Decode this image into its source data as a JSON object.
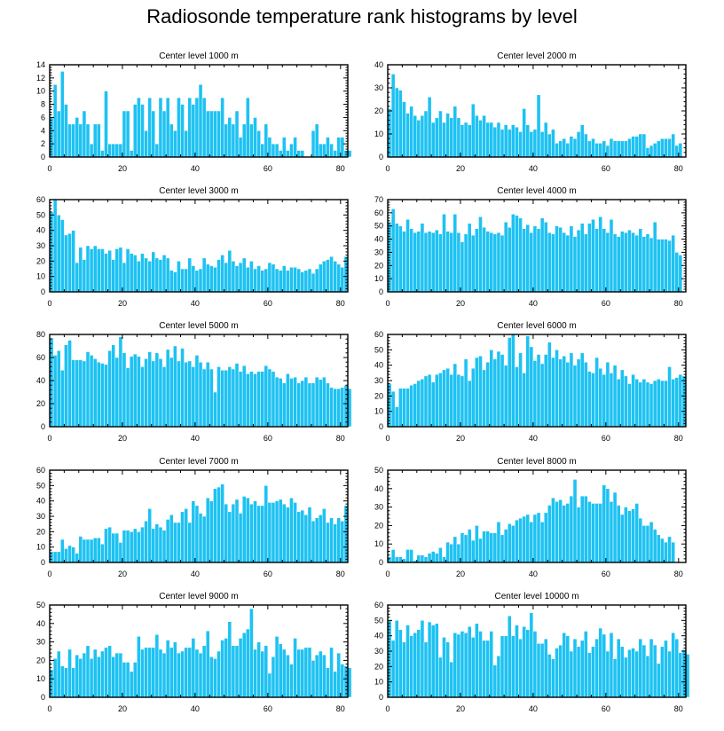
{
  "title": "Radiosonde temperature rank histograms by level",
  "colors": {
    "bar": "#1ec2f2",
    "bar_edge": "#ffffff",
    "axis": "#000000"
  },
  "chart_data": [
    {
      "type": "bar",
      "title": "Center level 1000 m",
      "xlim": [
        0,
        82
      ],
      "ylim": [
        0,
        14
      ],
      "xticks": [
        "0",
        "20",
        "40",
        "60",
        "80"
      ],
      "yticks": [
        "0",
        "2",
        "4",
        "6",
        "8",
        "10",
        "12",
        "14"
      ],
      "values": [
        6,
        11,
        7,
        13,
        8,
        5,
        5,
        6,
        5,
        7,
        5,
        2,
        5,
        5,
        1,
        10,
        2,
        2,
        2,
        2,
        7,
        7,
        1,
        8,
        9,
        8,
        4,
        9,
        7,
        2,
        9,
        7,
        9,
        5,
        4,
        9,
        8,
        4,
        9,
        8,
        9,
        11,
        9,
        7,
        7,
        7,
        7,
        9,
        5,
        6,
        5,
        7,
        3,
        5,
        9,
        5,
        6,
        4,
        2,
        5,
        3,
        2,
        2,
        1,
        3,
        1,
        2,
        3,
        1,
        1,
        0,
        0,
        4,
        5,
        2,
        2,
        3,
        2,
        1,
        3,
        3,
        1,
        1
      ]
    },
    {
      "type": "bar",
      "title": "Center level 2000 m",
      "xlim": [
        0,
        82
      ],
      "ylim": [
        0,
        40
      ],
      "xticks": [
        "0",
        "20",
        "40",
        "60",
        "80"
      ],
      "yticks": [
        "0",
        "10",
        "20",
        "30",
        "40"
      ],
      "values": [
        21,
        36,
        30,
        29,
        24,
        19,
        22,
        18,
        16,
        18,
        20,
        26,
        15,
        17,
        20,
        15,
        19,
        17,
        22,
        17,
        14,
        15,
        14,
        23,
        18,
        16,
        18,
        15,
        15,
        13,
        15,
        12,
        14,
        12,
        14,
        13,
        11,
        21,
        14,
        11,
        12,
        27,
        11,
        15,
        10,
        12,
        6,
        7,
        8,
        6,
        9,
        8,
        11,
        14,
        10,
        7,
        8,
        6,
        6,
        7,
        5,
        8,
        7,
        7,
        7,
        7,
        8,
        9,
        9,
        10,
        10,
        4,
        5,
        6,
        7,
        8,
        8,
        8,
        10,
        5,
        6
      ]
    },
    {
      "type": "bar",
      "title": "Center level 3000 m",
      "xlim": [
        0,
        82
      ],
      "ylim": [
        0,
        60
      ],
      "xticks": [
        "0",
        "20",
        "40",
        "60",
        "80"
      ],
      "yticks": [
        "0",
        "10",
        "20",
        "30",
        "40",
        "50",
        "60"
      ],
      "values": [
        52,
        60,
        50,
        47,
        37,
        38,
        40,
        19,
        29,
        21,
        30,
        28,
        30,
        28,
        28,
        25,
        27,
        21,
        28,
        29,
        19,
        28,
        25,
        24,
        20,
        25,
        22,
        20,
        26,
        22,
        21,
        24,
        22,
        14,
        13,
        20,
        15,
        15,
        22,
        17,
        14,
        15,
        22,
        18,
        17,
        16,
        21,
        24,
        19,
        27,
        20,
        17,
        19,
        22,
        16,
        20,
        15,
        17,
        14,
        15,
        19,
        18,
        15,
        14,
        17,
        14,
        16,
        16,
        15,
        13,
        14,
        15,
        12,
        15,
        18,
        20,
        21,
        23,
        20,
        18,
        16,
        23
      ]
    },
    {
      "type": "bar",
      "title": "Center level 4000 m",
      "xlim": [
        0,
        82
      ],
      "ylim": [
        0,
        70
      ],
      "xticks": [
        "0",
        "20",
        "40",
        "60",
        "80"
      ],
      "yticks": [
        "0",
        "10",
        "20",
        "30",
        "40",
        "50",
        "60",
        "70"
      ],
      "values": [
        53,
        63,
        52,
        50,
        46,
        55,
        48,
        45,
        46,
        52,
        45,
        46,
        45,
        47,
        44,
        59,
        46,
        45,
        59,
        45,
        38,
        44,
        52,
        43,
        48,
        57,
        49,
        46,
        45,
        44,
        45,
        43,
        53,
        49,
        59,
        58,
        56,
        48,
        51,
        45,
        50,
        48,
        56,
        53,
        45,
        44,
        50,
        49,
        45,
        43,
        50,
        42,
        47,
        52,
        44,
        52,
        55,
        48,
        57,
        48,
        45,
        55,
        44,
        42,
        46,
        45,
        47,
        45,
        43,
        48,
        42,
        44,
        41,
        53,
        40,
        40,
        40,
        39,
        43,
        30,
        28
      ]
    },
    {
      "type": "bar",
      "title": "Center level 5000 m",
      "xlim": [
        0,
        82
      ],
      "ylim": [
        0,
        80
      ],
      "xticks": [
        "0",
        "20",
        "40",
        "60",
        "80"
      ],
      "yticks": [
        "0",
        "20",
        "40",
        "60",
        "80"
      ],
      "values": [
        77,
        62,
        66,
        49,
        71,
        75,
        58,
        58,
        58,
        57,
        65,
        62,
        59,
        56,
        55,
        54,
        66,
        71,
        60,
        78,
        64,
        51,
        61,
        63,
        61,
        52,
        59,
        65,
        57,
        64,
        59,
        52,
        67,
        60,
        70,
        57,
        68,
        56,
        57,
        52,
        62,
        56,
        50,
        56,
        50,
        30,
        52,
        49,
        49,
        52,
        50,
        55,
        48,
        53,
        46,
        48,
        46,
        48,
        48,
        53,
        50,
        48,
        43,
        42,
        38,
        46,
        42,
        43,
        38,
        40,
        43,
        38,
        38,
        43,
        41,
        43,
        38,
        34,
        33,
        33,
        34,
        36,
        33
      ]
    },
    {
      "type": "bar",
      "title": "Center level 6000 m",
      "xlim": [
        0,
        82
      ],
      "ylim": [
        0,
        60
      ],
      "xticks": [
        "0",
        "20",
        "40",
        "60",
        "80"
      ],
      "yticks": [
        "0",
        "10",
        "20",
        "30",
        "40",
        "50",
        "60"
      ],
      "values": [
        28,
        23,
        13,
        25,
        25,
        25,
        27,
        28,
        30,
        31,
        33,
        34,
        29,
        34,
        35,
        37,
        38,
        34,
        41,
        34,
        33,
        44,
        30,
        38,
        45,
        46,
        37,
        42,
        50,
        44,
        49,
        47,
        40,
        58,
        60,
        39,
        48,
        35,
        59,
        52,
        43,
        47,
        41,
        47,
        55,
        45,
        50,
        44,
        46,
        42,
        48,
        40,
        44,
        48,
        42,
        36,
        35,
        45,
        38,
        34,
        42,
        35,
        40,
        31,
        37,
        33,
        28,
        34,
        31,
        29,
        31,
        29,
        28,
        30,
        31,
        30,
        30,
        39,
        31,
        32,
        34,
        33
      ]
    },
    {
      "type": "bar",
      "title": "Center level 7000 m",
      "xlim": [
        0,
        82
      ],
      "ylim": [
        0,
        60
      ],
      "xticks": [
        "0",
        "20",
        "40",
        "60",
        "80"
      ],
      "yticks": [
        "0",
        "10",
        "20",
        "30",
        "40",
        "50",
        "60"
      ],
      "values": [
        7,
        7,
        7,
        15,
        9,
        11,
        10,
        6,
        17,
        15,
        15,
        15,
        16,
        16,
        12,
        22,
        23,
        19,
        19,
        13,
        21,
        21,
        20,
        22,
        20,
        23,
        27,
        35,
        22,
        25,
        23,
        21,
        28,
        31,
        26,
        26,
        33,
        35,
        26,
        40,
        37,
        32,
        30,
        42,
        40,
        48,
        49,
        51,
        38,
        33,
        38,
        41,
        32,
        43,
        42,
        38,
        40,
        37,
        37,
        50,
        39,
        39,
        40,
        41,
        38,
        36,
        42,
        39,
        33,
        34,
        31,
        36,
        27,
        29,
        31,
        35,
        26,
        29,
        25,
        29,
        27,
        37
      ]
    },
    {
      "type": "bar",
      "title": "Center level 8000 m",
      "xlim": [
        0,
        82
      ],
      "ylim": [
        0,
        50
      ],
      "xticks": [
        "0",
        "20",
        "40",
        "60",
        "80"
      ],
      "yticks": [
        "0",
        "10",
        "20",
        "30",
        "40",
        "50"
      ],
      "values": [
        3,
        7,
        3,
        3,
        2,
        7,
        7,
        1,
        4,
        4,
        3,
        5,
        6,
        5,
        8,
        3,
        11,
        10,
        14,
        10,
        16,
        15,
        18,
        12,
        20,
        13,
        17,
        17,
        16,
        16,
        22,
        15,
        18,
        21,
        20,
        23,
        24,
        25,
        26,
        22,
        26,
        27,
        22,
        27,
        31,
        35,
        33,
        34,
        31,
        32,
        36,
        45,
        30,
        36,
        36,
        33,
        32,
        32,
        32,
        42,
        40,
        33,
        38,
        31,
        26,
        30,
        28,
        29,
        32,
        24,
        20,
        20,
        22,
        18,
        15,
        13,
        11,
        14,
        11
      ]
    },
    {
      "type": "bar",
      "title": "Center level 9000 m",
      "xlim": [
        0,
        82
      ],
      "ylim": [
        0,
        50
      ],
      "xticks": [
        "0",
        "20",
        "40",
        "60",
        "80"
      ],
      "yticks": [
        "0",
        "10",
        "20",
        "30",
        "40",
        "50"
      ],
      "values": [
        15,
        21,
        25,
        17,
        16,
        26,
        16,
        23,
        21,
        24,
        28,
        21,
        26,
        22,
        25,
        27,
        28,
        22,
        24,
        24,
        19,
        19,
        14,
        19,
        33,
        26,
        27,
        27,
        27,
        34,
        26,
        24,
        31,
        27,
        30,
        24,
        25,
        27,
        27,
        32,
        26,
        24,
        28,
        36,
        22,
        21,
        25,
        31,
        32,
        41,
        28,
        28,
        32,
        35,
        37,
        48,
        26,
        30,
        25,
        28,
        13,
        22,
        33,
        29,
        26,
        23,
        18,
        32,
        26,
        26,
        27,
        27,
        20,
        23,
        25,
        23,
        16,
        27,
        14,
        24,
        18,
        17,
        16
      ]
    },
    {
      "type": "bar",
      "title": "Center level 10000 m",
      "xlim": [
        0,
        82
      ],
      "ylim": [
        0,
        60
      ],
      "xticks": [
        "0",
        "20",
        "40",
        "60",
        "80"
      ],
      "yticks": [
        "0",
        "10",
        "20",
        "30",
        "40",
        "50",
        "60"
      ],
      "values": [
        50,
        37,
        50,
        44,
        36,
        47,
        40,
        42,
        44,
        50,
        36,
        49,
        47,
        48,
        26,
        39,
        36,
        23,
        42,
        41,
        43,
        42,
        46,
        39,
        48,
        43,
        37,
        37,
        43,
        21,
        27,
        40,
        40,
        53,
        40,
        47,
        38,
        46,
        44,
        55,
        43,
        35,
        35,
        38,
        28,
        25,
        32,
        34,
        42,
        40,
        30,
        38,
        33,
        37,
        43,
        29,
        33,
        38,
        45,
        41,
        30,
        42,
        25,
        38,
        33,
        26,
        31,
        32,
        30,
        38,
        34,
        27,
        38,
        34,
        22,
        33,
        37,
        30,
        42,
        38,
        29,
        31,
        28
      ]
    }
  ]
}
